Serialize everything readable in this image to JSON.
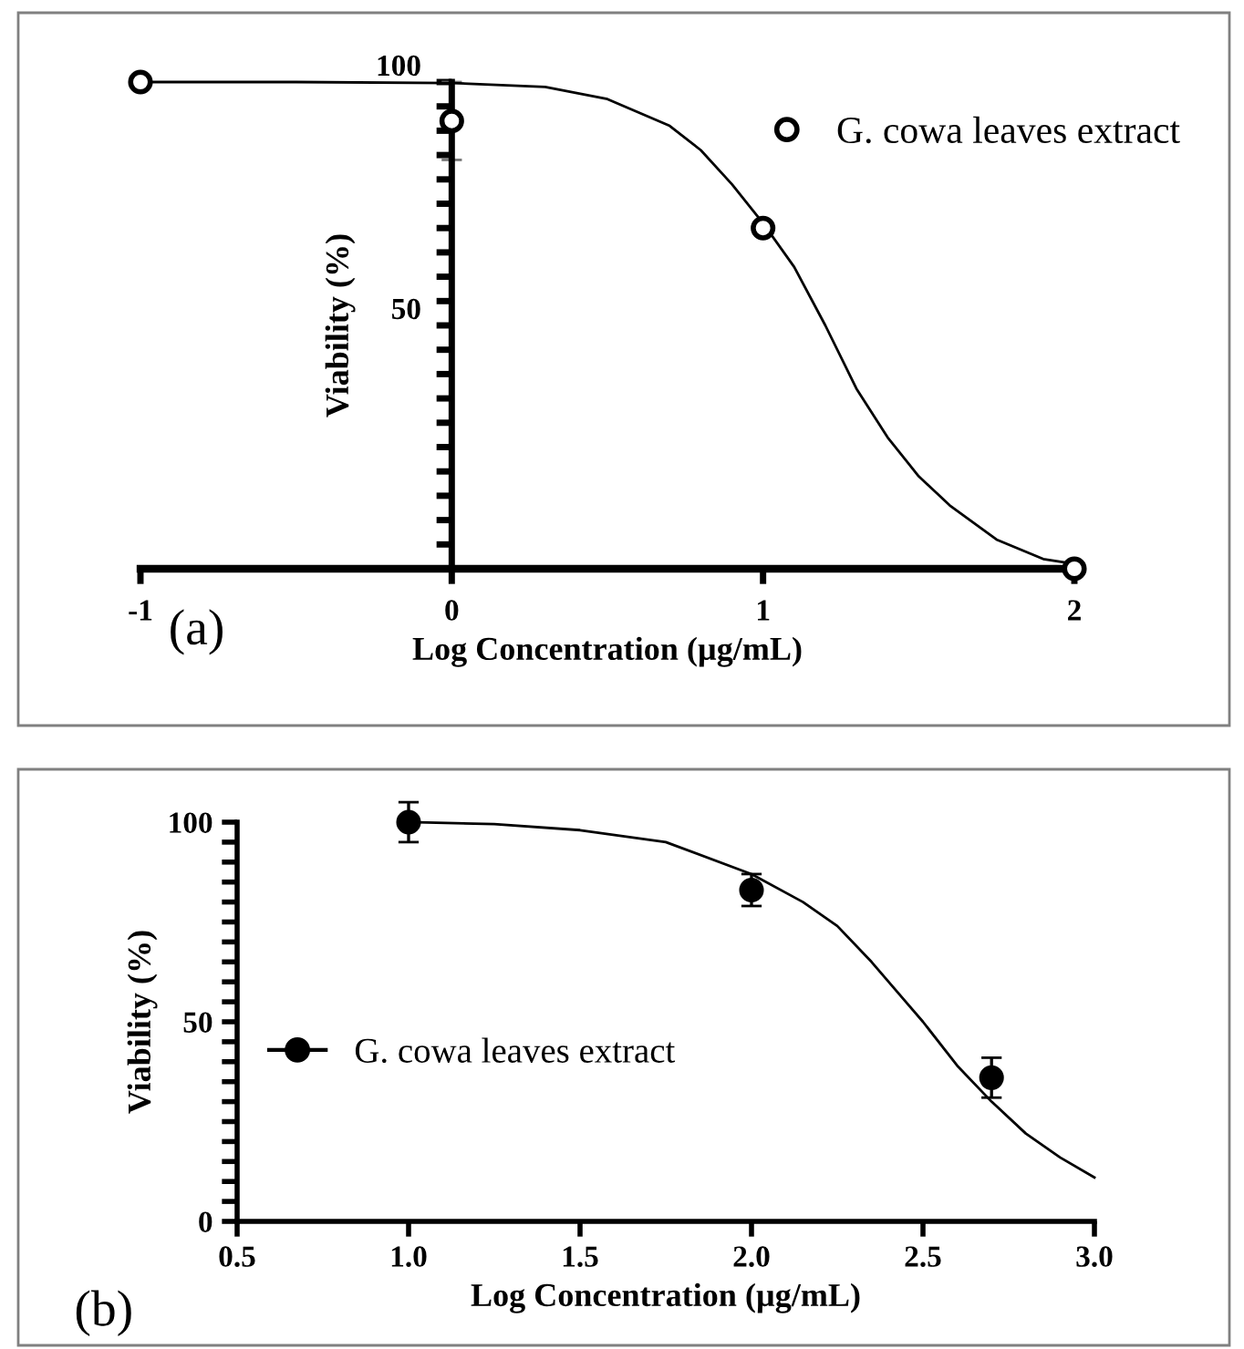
{
  "chart_data": [
    {
      "type": "scatter",
      "xlabel": "Log Concentration (µg/mL)",
      "ylabel": "Viability (%)",
      "annotations": [
        "(a)"
      ],
      "xlim": [
        -1,
        2
      ],
      "xticks": [
        -1,
        0,
        1,
        2
      ],
      "ylim": [
        0,
        100
      ],
      "yticks": [
        {
          "value": 5,
          "label": null
        },
        {
          "value": 10,
          "label": null
        },
        {
          "value": 15,
          "label": null
        },
        {
          "value": 20,
          "label": null
        },
        {
          "value": 25,
          "label": null
        },
        {
          "value": 30,
          "label": null
        },
        {
          "value": 35,
          "label": null
        },
        {
          "value": 40,
          "label": null
        },
        {
          "value": 45,
          "label": null
        },
        50,
        {
          "value": 55,
          "label": null
        },
        {
          "value": 60,
          "label": null
        },
        {
          "value": 65,
          "label": null
        },
        {
          "value": 70,
          "label": null
        },
        {
          "value": 75,
          "label": null
        },
        {
          "value": 80,
          "label": null
        },
        {
          "value": 85,
          "label": null
        },
        {
          "value": 90,
          "label": null
        },
        {
          "value": 95,
          "label": null
        },
        100
      ],
      "legend": "top right",
      "series": [
        {
          "name": "G. cowa leaves extract",
          "marker": "circle",
          "color": "#000000",
          "x": [
            -1,
            0,
            1,
            2
          ],
          "values": [
            100,
            92,
            70,
            0
          ],
          "errors": [
            null,
            8,
            null,
            null
          ]
        },
        {
          "type": "line",
          "color": "#000000",
          "x": [
            -1,
            -0.5,
            0,
            0.3,
            0.5,
            0.7,
            0.8,
            0.9,
            1,
            1.1,
            1.2,
            1.3,
            1.4,
            1.5,
            1.6,
            1.75,
            1.9,
            2
          ],
          "values": [
            100,
            100,
            99.8,
            99,
            96.5,
            91,
            86,
            79,
            71,
            62,
            50,
            37,
            27,
            19,
            13,
            6,
            2,
            1
          ]
        }
      ]
    },
    {
      "type": "scatter",
      "xlabel": "Log Concentration (µg/mL)",
      "ylabel": "Viability (%)",
      "annotations": [
        "(b)"
      ],
      "xlim": [
        0.5,
        3.0
      ],
      "xticks": [
        {
          "value": 0.5,
          "label": "0.5"
        },
        {
          "value": 1.0,
          "label": "1.0"
        },
        {
          "value": 1.5,
          "label": "1.5"
        },
        {
          "value": 2.0,
          "label": "2.0"
        },
        {
          "value": 2.5,
          "label": "2.5"
        },
        {
          "value": 3.0,
          "label": "3.0"
        }
      ],
      "ylim": [
        0,
        100
      ],
      "yticks": [
        0,
        {
          "value": 5,
          "label": null
        },
        {
          "value": 10,
          "label": null
        },
        {
          "value": 15,
          "label": null
        },
        {
          "value": 20,
          "label": null
        },
        {
          "value": 25,
          "label": null
        },
        {
          "value": 30,
          "label": null
        },
        {
          "value": 35,
          "label": null
        },
        {
          "value": 40,
          "label": null
        },
        {
          "value": 45,
          "label": null
        },
        50,
        {
          "value": 55,
          "label": null
        },
        {
          "value": 60,
          "label": null
        },
        {
          "value": 65,
          "label": null
        },
        {
          "value": 70,
          "label": null
        },
        {
          "value": 75,
          "label": null
        },
        {
          "value": 80,
          "label": null
        },
        {
          "value": 85,
          "label": null
        },
        {
          "value": 90,
          "label": null
        },
        {
          "value": 95,
          "label": null
        },
        100
      ],
      "legend": "left",
      "series": [
        {
          "name": "G. cowa leaves extract",
          "marker": "circle",
          "color": "#000000",
          "x": [
            1.0,
            2.0,
            2.7
          ],
          "values": [
            100,
            83,
            36
          ],
          "errors": [
            5,
            4,
            5
          ]
        },
        {
          "type": "line",
          "color": "#000000",
          "x": [
            1.0,
            1.25,
            1.5,
            1.75,
            2.0,
            2.15,
            2.25,
            2.35,
            2.45,
            2.5,
            2.6,
            2.7,
            2.8,
            2.9,
            3.0
          ],
          "values": [
            100,
            99.5,
            98,
            95,
            87,
            80,
            74,
            65,
            55,
            50,
            39,
            30,
            22,
            16,
            11
          ]
        }
      ]
    }
  ]
}
